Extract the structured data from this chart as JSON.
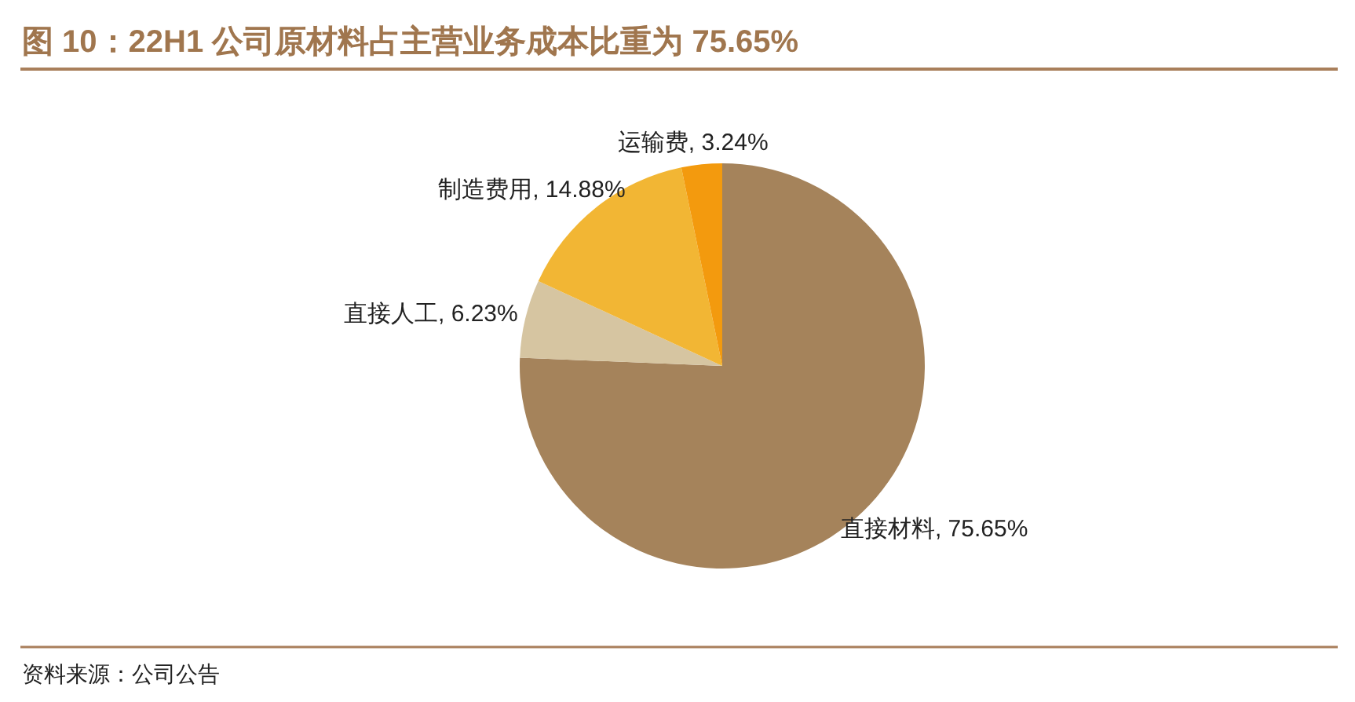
{
  "chart_data": {
    "type": "pie",
    "title": "图 10：22H1 公司原材料占主营业务成本比重为 75.65%",
    "categories": [
      "直接材料",
      "直接人工",
      "制造费用",
      "运输费"
    ],
    "values": [
      75.65,
      6.23,
      14.88,
      3.24
    ],
    "colors": [
      "#a5835b",
      "#d6c5a1",
      "#f2b634",
      "#f39a0e"
    ],
    "value_labels": [
      "75.65%",
      "6.23%",
      "14.88%",
      "3.24%"
    ],
    "annotations": [
      "资料来源：公司公告"
    ]
  }
}
